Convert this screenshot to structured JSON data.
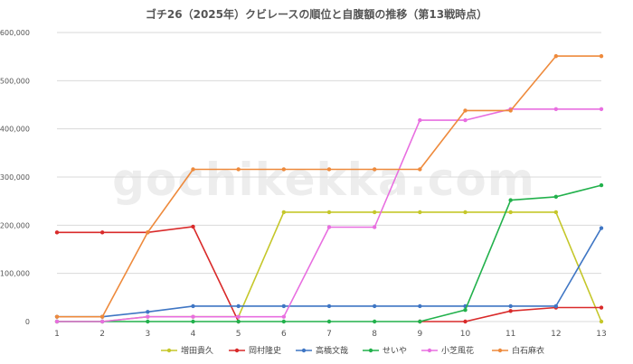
{
  "chart_data": {
    "type": "line",
    "title": "ゴチ26（2025年）クビレースの順位と自腹額の推移（第13戦時点）",
    "watermark": "gochikekka.com",
    "x": [
      1,
      2,
      3,
      4,
      5,
      6,
      7,
      8,
      9,
      10,
      11,
      12,
      13
    ],
    "ylim": [
      0,
      600000
    ],
    "yticks": [
      0,
      100000,
      200000,
      300000,
      400000,
      500000,
      600000
    ],
    "ytick_labels": [
      "0",
      "100,000",
      "200,000",
      "300,000",
      "400,000",
      "500,000",
      "600,000"
    ],
    "xtick_labels": [
      "1",
      "2",
      "3",
      "4",
      "5",
      "6",
      "7",
      "8",
      "9",
      "10",
      "11",
      "12",
      "13"
    ],
    "grid": true,
    "legend_position": "bottom",
    "series": [
      {
        "name": "増田貴久",
        "color": "#c5c72a",
        "values": [
          0,
          0,
          10000,
          10000,
          10000,
          227000,
          227000,
          227000,
          227000,
          227000,
          227000,
          227000,
          0
        ]
      },
      {
        "name": "岡村隆史",
        "color": "#d92a2a",
        "values": [
          185000,
          185000,
          185000,
          197000,
          0,
          null,
          null,
          null,
          0,
          0,
          22000,
          29000,
          29000
        ]
      },
      {
        "name": "高橋文哉",
        "color": "#3f76c4",
        "values": [
          10000,
          10000,
          20000,
          32000,
          32000,
          32000,
          32000,
          32000,
          32000,
          32000,
          32000,
          32000,
          194000
        ]
      },
      {
        "name": "せいや",
        "color": "#22b14c",
        "values": [
          0,
          0,
          0,
          0,
          0,
          0,
          0,
          0,
          0,
          24000,
          252000,
          259000,
          283000
        ]
      },
      {
        "name": "小芝風花",
        "color": "#e86ee0",
        "values": [
          0,
          0,
          10000,
          10000,
          10000,
          10000,
          196000,
          196000,
          418000,
          418000,
          441000,
          441000,
          441000
        ]
      },
      {
        "name": "白石麻衣",
        "color": "#ee8a3c",
        "values": [
          10000,
          10000,
          185000,
          316000,
          316000,
          316000,
          316000,
          316000,
          316000,
          438000,
          438000,
          551000,
          551000
        ]
      }
    ]
  }
}
